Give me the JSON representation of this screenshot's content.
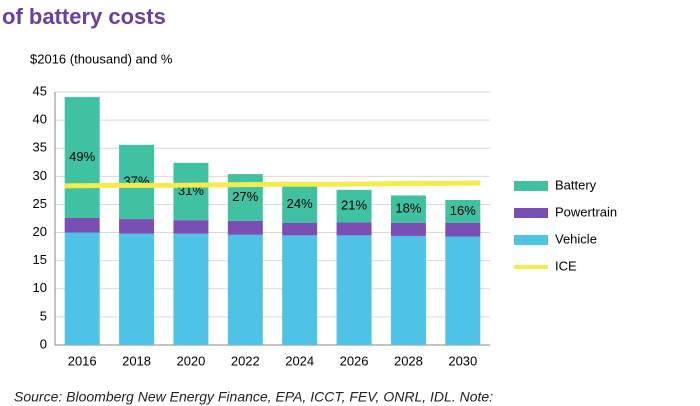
{
  "chart_data": {
    "type": "bar",
    "stacked": true,
    "title": "of battery costs",
    "y_label": "$2016 (thousand) and %",
    "source": "Source: Bloomberg New Energy Finance, EPA, ICCT, FEV, ONRL, IDL. Note:",
    "categories": [
      "2016",
      "2018",
      "2020",
      "2022",
      "2024",
      "2026",
      "2028",
      "2030"
    ],
    "series": [
      {
        "name": "Vehicle",
        "color": "#4fc3e6",
        "type": "bar",
        "values": [
          20.0,
          19.8,
          19.8,
          19.6,
          19.5,
          19.5,
          19.4,
          19.3
        ]
      },
      {
        "name": "Powertrain",
        "color": "#7a4fb3",
        "type": "bar",
        "values": [
          2.6,
          2.6,
          2.4,
          2.5,
          2.2,
          2.3,
          2.3,
          2.4
        ]
      },
      {
        "name": "Battery",
        "color": "#40c2a2",
        "type": "bar",
        "values": [
          21.5,
          13.2,
          10.2,
          8.3,
          6.6,
          5.8,
          4.9,
          4.1
        ]
      },
      {
        "name": "ICE",
        "color": "#f4ec4c",
        "type": "line",
        "values": [
          28.3,
          28.4,
          28.4,
          28.5,
          28.6,
          28.6,
          28.7,
          28.8
        ]
      }
    ],
    "annotations": [
      "49%",
      "37%",
      "31%",
      "27%",
      "24%",
      "21%",
      "18%",
      "16%"
    ],
    "legend_order": [
      "Battery",
      "Powertrain",
      "Vehicle",
      "ICE"
    ],
    "ylim": [
      0,
      45
    ],
    "yticks": [
      0,
      5,
      10,
      15,
      20,
      25,
      30,
      35,
      40,
      45
    ],
    "grid": true,
    "legend": "right"
  }
}
